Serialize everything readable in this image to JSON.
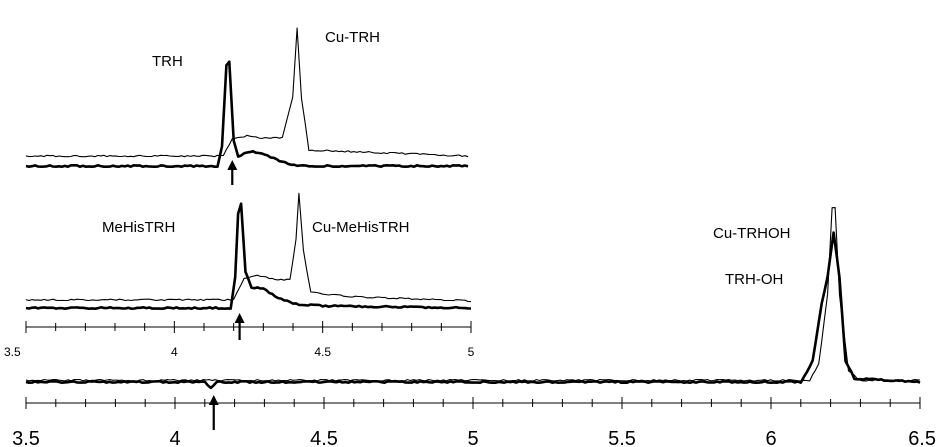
{
  "chart_data": [
    {
      "type": "line",
      "panel": "inset-top",
      "xlim": [
        3.5,
        5
      ],
      "x_axis_visible": false,
      "arrow_x": 4.2,
      "series": [
        {
          "name": "TRH",
          "stroke": "thick",
          "points": [
            [
              3.5,
              0
            ],
            [
              4.15,
              0
            ],
            [
              4.165,
              0.2
            ],
            [
              4.18,
              1.0
            ],
            [
              4.19,
              1.05
            ],
            [
              4.205,
              0.25
            ],
            [
              4.22,
              0.1
            ],
            [
              4.27,
              0.15
            ],
            [
              4.32,
              0.1
            ],
            [
              4.36,
              0.05
            ],
            [
              4.42,
              0.0
            ],
            [
              5.0,
              0.0
            ]
          ]
        },
        {
          "name": "Cu-TRH",
          "stroke": "thin",
          "points": [
            [
              3.5,
              0.02
            ],
            [
              4.17,
              0.02
            ],
            [
              4.2,
              0.2
            ],
            [
              4.25,
              0.22
            ],
            [
              4.3,
              0.2
            ],
            [
              4.37,
              0.2
            ],
            [
              4.405,
              0.6
            ],
            [
              4.42,
              1.3
            ],
            [
              4.435,
              0.6
            ],
            [
              4.46,
              0.08
            ],
            [
              5.0,
              0.02
            ]
          ]
        }
      ],
      "labels": [
        {
          "text": "TRH",
          "x": 4.18,
          "series": "TRH"
        },
        {
          "text": "Cu-TRH",
          "x": 4.42,
          "series": "Cu-TRH"
        }
      ]
    },
    {
      "type": "line",
      "panel": "inset-bottom",
      "xlim": [
        3.5,
        5
      ],
      "x_axis_visible": true,
      "xticks": [
        3.5,
        4,
        4.5,
        5
      ],
      "tick_labels": [
        "3.5",
        "4",
        "4.5",
        "5"
      ],
      "arrow_x": 4.22,
      "series": [
        {
          "name": "MeHisTRH",
          "stroke": "thick",
          "points": [
            [
              3.5,
              0
            ],
            [
              4.19,
              0
            ],
            [
              4.205,
              0.3
            ],
            [
              4.215,
              0.9
            ],
            [
              4.225,
              1.0
            ],
            [
              4.24,
              0.35
            ],
            [
              4.26,
              0.2
            ],
            [
              4.3,
              0.18
            ],
            [
              4.35,
              0.1
            ],
            [
              4.4,
              0.04
            ],
            [
              4.5,
              0.02
            ],
            [
              5.0,
              0.0
            ]
          ]
        },
        {
          "name": "Cu-MeHisTRH",
          "stroke": "thin",
          "points": [
            [
              3.5,
              0.03
            ],
            [
              4.2,
              0.03
            ],
            [
              4.235,
              0.24
            ],
            [
              4.28,
              0.26
            ],
            [
              4.33,
              0.23
            ],
            [
              4.39,
              0.22
            ],
            [
              4.41,
              0.6
            ],
            [
              4.42,
              1.05
            ],
            [
              4.435,
              0.5
            ],
            [
              4.46,
              0.1
            ],
            [
              4.6,
              0.06
            ],
            [
              5.0,
              0.02
            ]
          ]
        }
      ],
      "labels": [
        {
          "text": "MeHisTRH",
          "x": 4.22,
          "series": "MeHisTRH"
        },
        {
          "text": "Cu-MeHisTRH",
          "x": 4.42,
          "series": "Cu-MeHisTRH"
        }
      ]
    },
    {
      "type": "line",
      "panel": "main",
      "xlim": [
        3.5,
        6.5
      ],
      "x_axis_visible": true,
      "xticks": [
        3.5,
        4,
        4.5,
        5,
        5.5,
        6,
        6.5
      ],
      "tick_labels": [
        "3.5",
        "4",
        "4.5",
        "5",
        "5.5",
        "6",
        "6.5"
      ],
      "arrow_x": 4.13,
      "series": [
        {
          "name": "TRH-OH",
          "stroke": "thick",
          "points": [
            [
              3.5,
              0
            ],
            [
              4.1,
              0
            ],
            [
              4.12,
              -0.03
            ],
            [
              4.14,
              0
            ],
            [
              6.1,
              0
            ],
            [
              6.14,
              0.12
            ],
            [
              6.17,
              0.45
            ],
            [
              6.19,
              0.6
            ],
            [
              6.21,
              0.85
            ],
            [
              6.23,
              0.6
            ],
            [
              6.25,
              0.12
            ],
            [
              6.28,
              0.02
            ],
            [
              6.5,
              0
            ]
          ]
        },
        {
          "name": "Cu-TRHOH",
          "stroke": "thin",
          "points": [
            [
              3.5,
              0.01
            ],
            [
              6.13,
              0.01
            ],
            [
              6.16,
              0.1
            ],
            [
              6.19,
              0.5
            ],
            [
              6.205,
              1.0
            ],
            [
              6.215,
              1.0
            ],
            [
              6.23,
              0.5
            ],
            [
              6.26,
              0.06
            ],
            [
              6.3,
              0.01
            ],
            [
              6.5,
              0.01
            ]
          ]
        }
      ],
      "labels": [
        {
          "text": "Cu-TRHOH",
          "x": 6.21,
          "series": "Cu-TRHOH"
        },
        {
          "text": "TRH-OH",
          "x": 6.21,
          "series": "TRH-OH"
        }
      ]
    }
  ]
}
